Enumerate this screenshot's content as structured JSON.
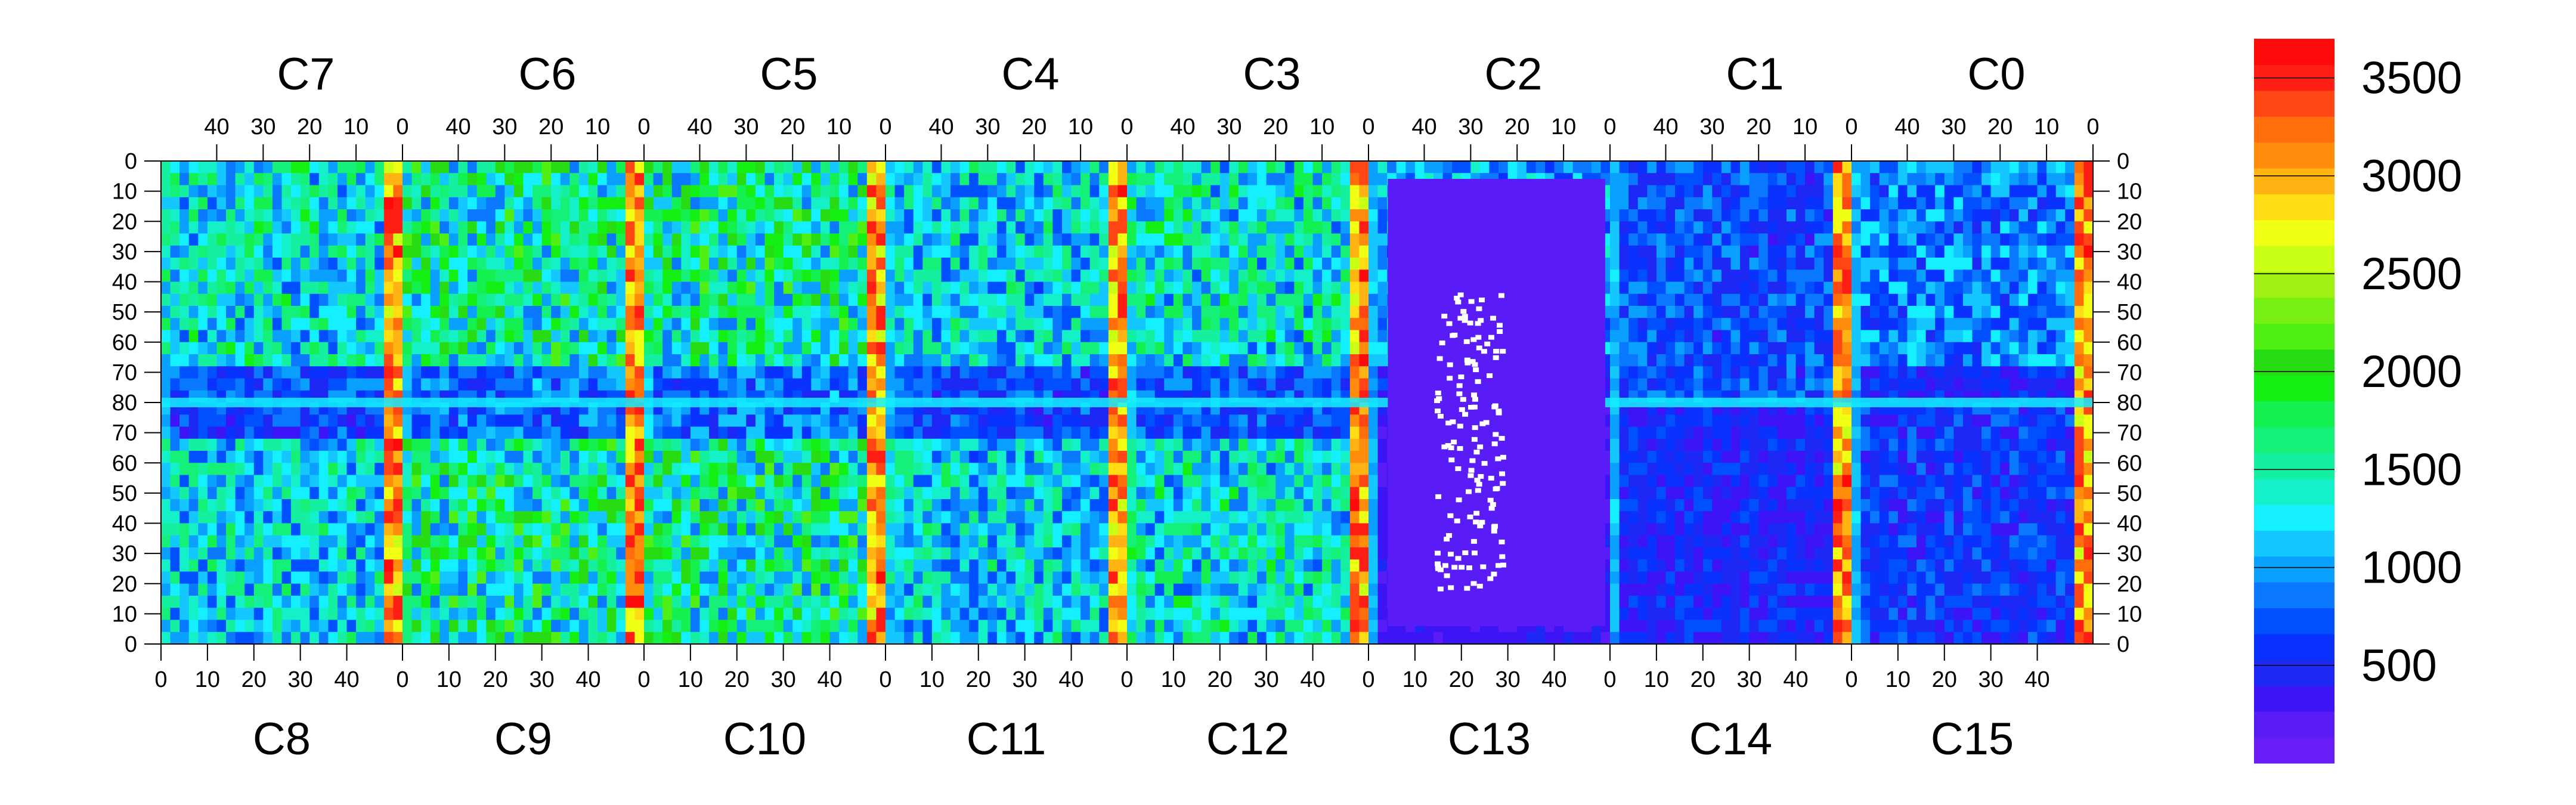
{
  "chart_data": {
    "type": "heatmap",
    "title": "",
    "xlabel": "",
    "ylabel": "",
    "top_chips": [
      "C7",
      "C6",
      "C5",
      "C4",
      "C3",
      "C2",
      "C1",
      "C0"
    ],
    "bottom_chips": [
      "C8",
      "C9",
      "C10",
      "C11",
      "C12",
      "C13",
      "C14",
      "C15"
    ],
    "top_x_ticks": [
      "40",
      "30",
      "20",
      "10",
      "0"
    ],
    "bottom_x_ticks": [
      "0",
      "10",
      "20",
      "30",
      "40"
    ],
    "x_range_per_chip": [
      0,
      52
    ],
    "top_y_ticks": [
      "0",
      "10",
      "20",
      "30",
      "40",
      "50",
      "60",
      "70",
      "80"
    ],
    "bottom_y_ticks": [
      "80",
      "70",
      "60",
      "50",
      "40",
      "30",
      "20",
      "10",
      "0"
    ],
    "y_range_per_half": [
      0,
      80
    ],
    "colorbar": {
      "range": [
        0,
        3700
      ],
      "ticks": [
        "500",
        "1000",
        "1500",
        "2000",
        "2500",
        "3000",
        "3500"
      ],
      "tick_values": [
        500,
        1000,
        1500,
        2000,
        2500,
        3000,
        3500
      ],
      "colors": [
        "#6a1cf6",
        "#5a1cf6",
        "#3c14f5",
        "#1e28f5",
        "#0a32ff",
        "#0050ff",
        "#0a78ff",
        "#0aa0ff",
        "#14c8ff",
        "#14f0ff",
        "#14f0c8",
        "#14f0a0",
        "#14f078",
        "#14f050",
        "#14f014",
        "#28dc14",
        "#50f014",
        "#78f014",
        "#a0f014",
        "#c8ff14",
        "#f0ff14",
        "#ffdc14",
        "#ffb414",
        "#ff8c0a",
        "#ff6e0a",
        "#ff4614",
        "#ff1e14",
        "#ff0a0a"
      ]
    },
    "series": [
      {
        "chip": "C7",
        "mean": 1300,
        "hot_edge": "right"
      },
      {
        "chip": "C6",
        "mean": 1500,
        "hot_edge": "right"
      },
      {
        "chip": "C5",
        "mean": 1500,
        "hot_edge": "right"
      },
      {
        "chip": "C4",
        "mean": 1200,
        "hot_edge": "right"
      },
      {
        "chip": "C3",
        "mean": 1300,
        "hot_edge": "right"
      },
      {
        "chip": "C2",
        "mean": 1000,
        "hot_edge": "none"
      },
      {
        "chip": "C1",
        "mean": 700,
        "hot_edge": "right"
      },
      {
        "chip": "C0",
        "mean": 900,
        "hot_edge": "right"
      },
      {
        "chip": "C8",
        "mean": 1200,
        "hot_edge": "right"
      },
      {
        "chip": "C9",
        "mean": 1500,
        "hot_edge": "right"
      },
      {
        "chip": "C10",
        "mean": 1500,
        "hot_edge": "right"
      },
      {
        "chip": "C11",
        "mean": 1200,
        "hot_edge": "right"
      },
      {
        "chip": "C12",
        "mean": 1300,
        "hot_edge": "right"
      },
      {
        "chip": "C13",
        "mean": 300,
        "hot_edge": "none"
      },
      {
        "chip": "C14",
        "mean": 500,
        "hot_edge": "right"
      },
      {
        "chip": "C15",
        "mean": 600,
        "hot_edge": "right"
      }
    ]
  }
}
